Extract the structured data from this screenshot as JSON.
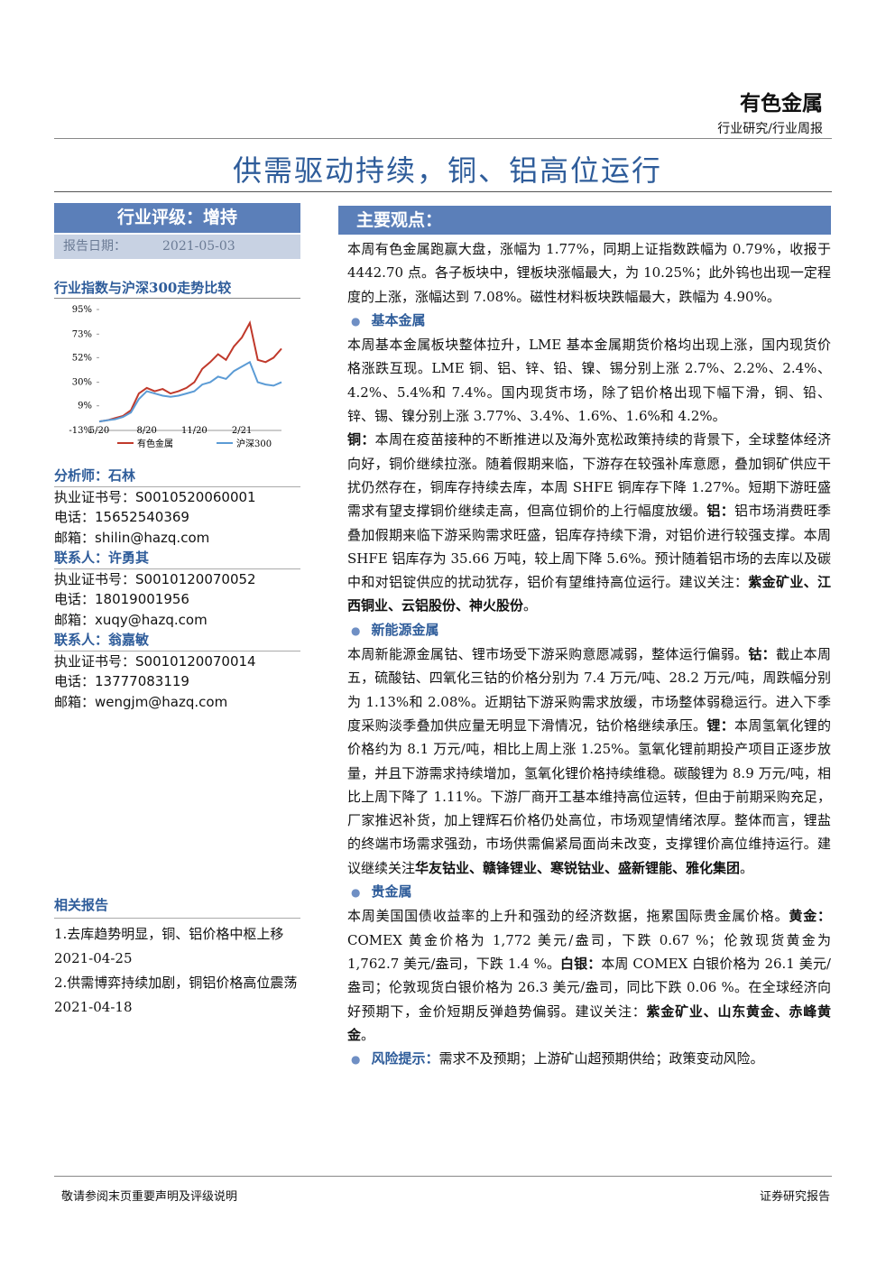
{
  "header": {
    "sector": "有色金属",
    "report_type": "行业研究/行业周报",
    "title": "供需驱动持续，铜、铝高位运行"
  },
  "sidebar": {
    "rating": "行业评级：增持",
    "date_label": "报告日期：",
    "date": "2021-05-03",
    "chart_data": {
      "type": "line",
      "title": "行业指数与沪深300走势比较",
      "categories": [
        "5/20",
        null,
        null,
        null,
        null,
        null,
        "8/20",
        null,
        null,
        null,
        null,
        null,
        "11/20",
        null,
        null,
        null,
        null,
        null,
        "2/21",
        null,
        null,
        null,
        null,
        null
      ],
      "series": [
        {
          "name": "有色金属",
          "color": "#c0392b",
          "values": [
            -5,
            -4,
            -2,
            0,
            5,
            20,
            25,
            22,
            24,
            20,
            22,
            25,
            30,
            42,
            48,
            55,
            50,
            62,
            70,
            83,
            50,
            48,
            52,
            60
          ]
        },
        {
          "name": "沪深300",
          "color": "#5b9bd5",
          "values": [
            -5,
            -4,
            -3,
            -1,
            3,
            15,
            22,
            20,
            18,
            17,
            18,
            20,
            22,
            28,
            30,
            35,
            33,
            40,
            44,
            48,
            30,
            28,
            27,
            30
          ]
        }
      ],
      "ylim": [
        -13,
        95
      ],
      "yticks": [
        {
          "value": 95,
          "label": "95%"
        },
        {
          "value": 73,
          "label": "73%"
        },
        {
          "value": 52,
          "label": "52%"
        },
        {
          "value": 30,
          "label": "30%"
        },
        {
          "value": 9,
          "label": "9%"
        },
        {
          "value": -13,
          "label": "-13%"
        }
      ],
      "legend": "bottom"
    },
    "contacts": [
      {
        "role": "分析师：石林",
        "license": "执业证书号：S0010520060001",
        "phone": "电话：15652540369",
        "email": "邮箱：shilin@hazq.com"
      },
      {
        "role": "联系人：许勇其",
        "license": "执业证书号：S0010120070052",
        "phone": "电话：18019001956",
        "email": "邮箱：xuqy@hazq.com"
      },
      {
        "role": "联系人：翁嘉敏",
        "license": "执业证书号：S0010120070014",
        "phone": "电话：13777083119",
        "email": "邮箱：wengjm@hazq.com"
      }
    ],
    "related_title": "相关报告",
    "related": [
      "1.去库趋势明显，铜、铝价格中枢上移 2021-04-25",
      "2.供需博弈持续加剧，铜铝价格高位震荡 2021-04-18"
    ]
  },
  "main": {
    "title": "主要观点：",
    "intro": [
      [
        "本周有色金属跑赢大盘，涨幅为 1.77%，同期上证指数跌幅为 0.79%，收报于 4442.70 点。各子板块中，锂板块涨幅最大，为 10.25%；此外钨也出现一定程度的上涨，涨幅达到 7.08%。磁性材料板块跌幅最大，跌幅为 4.90%。"
      ]
    ],
    "sections": [
      {
        "heading": "基本金属",
        "paragraphs": [
          [
            "本周基本金属板块整体拉升，LME 基本金属期货价格均出现上涨，国内现货价格涨跌互现。LME 铜、铝、锌、铅、镍、锡分别上涨 2.7%、2.2%、2.4%、4.2%、5.4%和 7.4%。国内现货市场，除了铝价格出现下幅下滑，铜、铅、锌、锡、镍分别上涨 3.77%、3.4%、1.6%、1.6%和 4.2%。"
          ],
          [
            {
              "text": "铜：",
              "bold": true
            },
            "本周在疫苗接种的不断推进以及海外宽松政策持续的背景下，全球整体经济向好，铜价继续拉涨。随着假期来临，下游存在较强补库意愿，叠加铜矿供应干扰仍然存在，铜库存持续去库，本周 SHFE 铜库存下降 1.27%。短期下游旺盛需求有望支撑铜价继续走高，但高位铜价的上行幅度放缓。",
            {
              "text": "铝：",
              "bold": true
            },
            "铝市场消费旺季叠加假期来临下游采购需求旺盛，铝库存持续下滑，对铝价进行较强支撑。本周 SHFE 铝库存为 35.66 万吨，较上周下降 5.6%。预计随着铝市场的去库以及碳中和对铝锭供应的扰动犹存，铝价有望维持高位运行。建议关注：",
            {
              "text": "紫金矿业、江西铜业、云铝股份、神火股份",
              "bold": true
            },
            "。"
          ]
        ]
      },
      {
        "heading": "新能源金属",
        "paragraphs": [
          [
            "本周新能源金属钴、锂市场受下游采购意愿减弱，整体运行偏弱。",
            {
              "text": "钴：",
              "bold": true
            },
            "截止本周五，硫酸钴、四氧化三钴的价格分别为 7.4 万元/吨、28.2 万元/吨，周跌幅分别为 1.13%和 2.08%。近期钴下游采购需求放缓，市场整体弱稳运行。进入下季度采购淡季叠加供应量无明显下滑情况，钴价格继续承压。",
            {
              "text": "锂：",
              "bold": true
            },
            "本周氢氧化锂的价格约为 8.1 万元/吨，相比上周上涨 1.25%。氢氧化锂前期投产项目正逐步放量，并且下游需求持续增加，氢氧化锂价格持续维稳。碳酸锂为 8.9 万元/吨，相比上周下降了 1.11%。下游厂商开工基本维持高位运转，但由于前期采购充足，厂家推迟补货，加上锂辉石价格仍处高位，市场观望情绪浓厚。整体而言，锂盐的终端市场需求强劲，市场供需偏紧局面尚未改变，支撑锂价高位维持运行。建议继续关注",
            {
              "text": "华友钴业、赣锋锂业、寒锐钴业、盛新锂能、雅化集团",
              "bold": true
            },
            "。"
          ]
        ]
      },
      {
        "heading": "贵金属",
        "paragraphs": [
          [
            "本周美国国债收益率的上升和强劲的经济数据，拖累国际贵金属价格。",
            {
              "text": "黄金：",
              "bold": true
            },
            "COMEX 黄金价格为 1,772 美元/盎司，下跌 0.67 %；伦敦现货黄金为 1,762.7 美元/盎司，下跌 1.4 %。",
            {
              "text": "白银：",
              "bold": true
            },
            "本周 COMEX 白银价格为 26.1 美元/盎司；伦敦现货白银价格为 26.3 美元/盎司，同比下跌 0.06 %。在全球经济向好预期下，金价短期反弹趋势偏弱。建议关注：",
            {
              "text": "紫金矿业、山东黄金、赤峰黄金",
              "bold": true
            },
            "。"
          ]
        ]
      }
    ],
    "risk": {
      "heading": "风险提示：",
      "text": "需求不及预期；上游矿山超预期供给；政策变动风险。"
    }
  },
  "footer": {
    "left": "敬请参阅末页重要声明及评级说明",
    "right": "证券研究报告"
  }
}
